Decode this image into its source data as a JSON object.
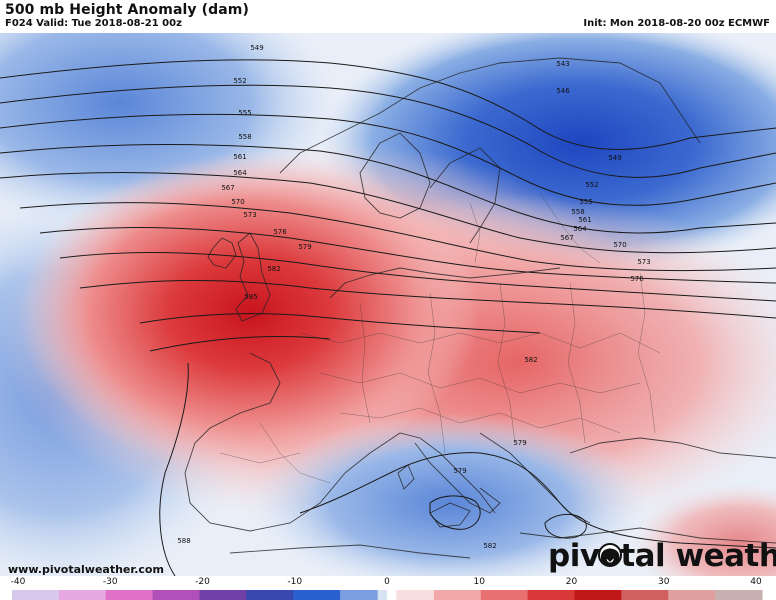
{
  "header": {
    "title": "500 mb Height Anomaly (dam)",
    "valid": "F024 Valid: Tue 2018-08-21 00z",
    "init": "Init: Mon 2018-08-20 00z ECMWF"
  },
  "footer": {
    "website": "www.pivotalweather.com",
    "logo": "pivotal weather"
  },
  "colorbar": {
    "ticks": [
      "-40",
      "-30",
      "-20",
      "-10",
      "0",
      "10",
      "20",
      "30",
      "40"
    ],
    "min": -40,
    "max": 40
  },
  "contour_labels": [
    "549",
    "552",
    "555",
    "558",
    "561",
    "564",
    "567",
    "570",
    "573",
    "576",
    "579",
    "582",
    "585",
    "543",
    "546",
    "549",
    "552",
    "555",
    "558",
    "561",
    "564",
    "567",
    "570",
    "573",
    "576",
    "582",
    "579",
    "579",
    "582",
    "588"
  ],
  "colors": {
    "negative_strong": "#1e46c0",
    "negative_light": "#c8d8f0",
    "positive_light": "#f4c6c6",
    "positive_strong": "#c8141e"
  }
}
